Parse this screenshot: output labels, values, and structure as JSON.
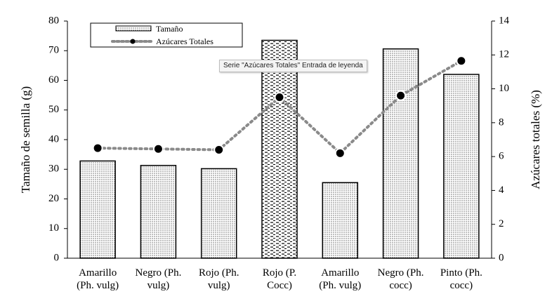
{
  "chart_data": {
    "type": "bar",
    "categories": [
      [
        "Amarillo",
        "(Ph. vulg)"
      ],
      [
        "Negro (Ph.",
        "vulg)"
      ],
      [
        "Rojo (Ph.",
        "vulg)"
      ],
      [
        "Rojo (P.",
        "Cocc)"
      ],
      [
        "Amarillo",
        "(Ph. vulg)"
      ],
      [
        "Negro (Ph.",
        "cocc)"
      ],
      [
        "Pinto (Ph.",
        "cocc)"
      ]
    ],
    "series": [
      {
        "name": "Tamaño",
        "type": "bar",
        "axis": "left",
        "values": [
          32.8,
          31.3,
          30.2,
          73.5,
          25.5,
          70.6,
          62.0
        ]
      },
      {
        "name": "Azúcares Totales",
        "type": "line",
        "axis": "right",
        "values": [
          6.5,
          6.45,
          6.4,
          9.5,
          6.2,
          9.6,
          11.65
        ]
      }
    ],
    "ylabel": "Tamaño de semilla (g)",
    "y2label": "Azúcares totales (%)",
    "ylim": [
      0,
      80
    ],
    "yticks": [
      0,
      10,
      20,
      30,
      40,
      50,
      60,
      70,
      80
    ],
    "y2lim": [
      0,
      14
    ],
    "y2ticks": [
      0,
      2,
      4,
      6,
      8,
      10,
      12,
      14
    ],
    "legend_position": "top-left",
    "grid": false
  },
  "tooltip": {
    "text": "Serie \"Azúcares Totales\" Entrada de leyenda"
  }
}
